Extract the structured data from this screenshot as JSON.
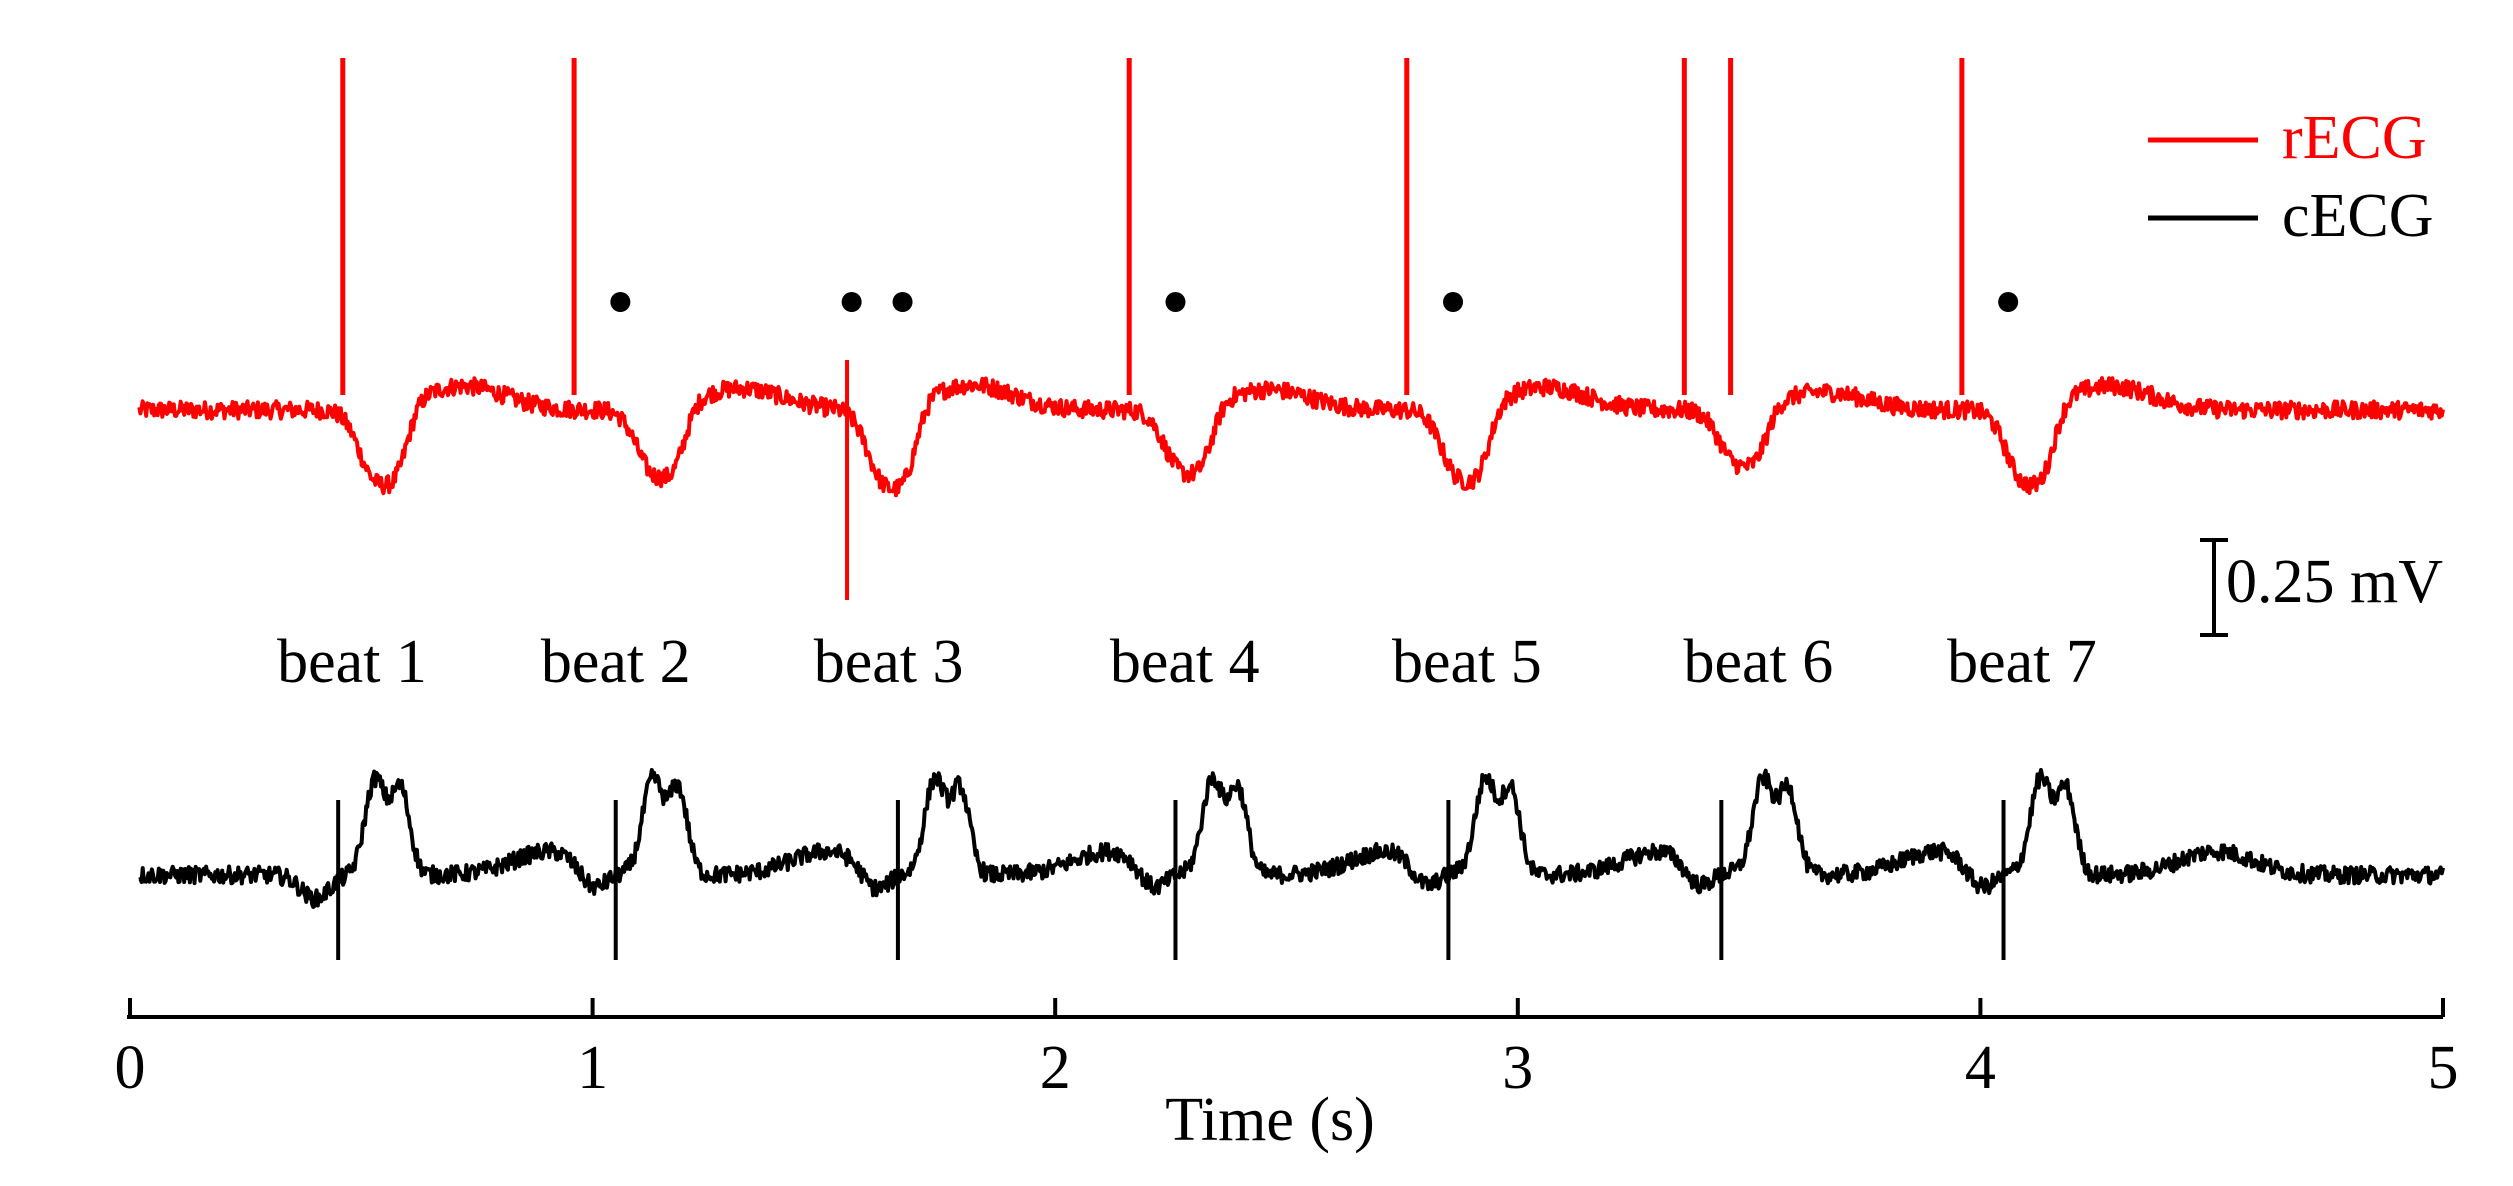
{
  "chart_data": {
    "type": "line",
    "title": "",
    "xlabel": "Time (s)",
    "ylabel": "",
    "xlim": [
      0,
      5
    ],
    "x_ticks": [
      "0",
      "1",
      "2",
      "3",
      "4",
      "5"
    ],
    "grid": false,
    "legend": {
      "placement": "top-right",
      "entries": [
        "rECG",
        "cECG"
      ]
    },
    "colors": {
      "rECG": "#ff0000",
      "cECG": "#000000"
    },
    "scale_bar_label": "0.25 mV",
    "beat_labels": [
      "beat 1",
      "beat 2",
      "beat 3",
      "beat 4",
      "beat 5",
      "beat 6",
      "beat 7"
    ],
    "beat_label_times": [
      0.48,
      1.05,
      1.64,
      2.28,
      2.89,
      3.52,
      4.09
    ],
    "dot_marker_times": [
      1.06,
      1.56,
      1.67,
      2.26,
      2.86,
      4.06
    ],
    "series": [
      {
        "name": "rECG",
        "color": "#ff0000",
        "artifact_spike_times": [
          0.46,
          0.96,
          2.16,
          2.76,
          3.36,
          3.46,
          3.96
        ],
        "beat_times": [
          0.5,
          1.1,
          1.6,
          2.24,
          2.84,
          3.44,
          4.06
        ],
        "beat_amplitudes": [
          1.0,
          0.9,
          1.05,
          0.85,
          0.95,
          0.75,
          1.0
        ],
        "deep_spike_time": 1.55
      },
      {
        "name": "cECG",
        "color": "#000000",
        "qrs_times": [
          0.45,
          1.05,
          1.66,
          2.26,
          2.85,
          3.44,
          4.05
        ],
        "t_wave_times": [
          0.55,
          1.15,
          1.76,
          2.36,
          2.95,
          3.55,
          4.15
        ]
      }
    ]
  }
}
